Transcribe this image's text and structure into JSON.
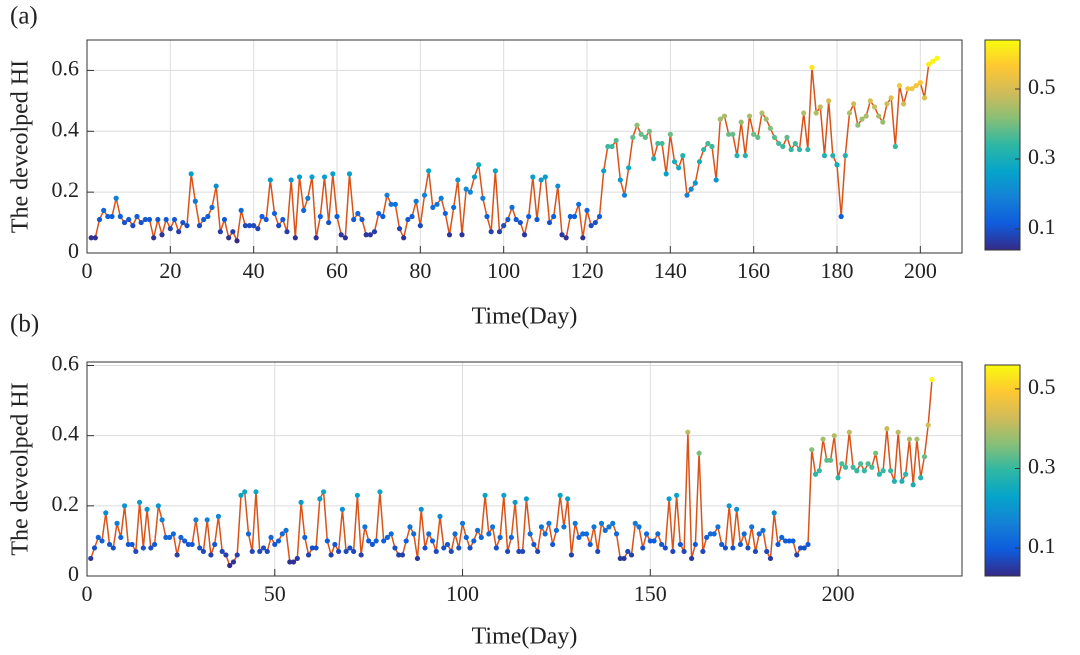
{
  "chart_data": [
    {
      "type": "line",
      "panel_label": "(a)",
      "xlabel": "Time(Day)",
      "ylabel": "The deveolped HI",
      "xlim": [
        0,
        210
      ],
      "xticks": [
        0,
        20,
        40,
        60,
        80,
        100,
        120,
        140,
        160,
        180,
        200
      ],
      "ylim": [
        0,
        0.7
      ],
      "yticks": [
        0,
        0.2,
        0.4,
        0.6
      ],
      "grid": true,
      "line_color": "#d95319",
      "colormap": [
        "#352a87",
        "#0f5cdd",
        "#1481d6",
        "#06a4ca",
        "#2eb7a4",
        "#87bf77",
        "#d1bb59",
        "#fec832",
        "#f9fb0e"
      ],
      "clim": [
        0.04,
        0.64
      ],
      "colorbar_ticks": [
        0.1,
        0.3,
        0.5
      ],
      "x": [
        1,
        2,
        3,
        4,
        5,
        6,
        7,
        8,
        9,
        10,
        11,
        12,
        13,
        14,
        15,
        16,
        17,
        18,
        19,
        20,
        21,
        22,
        23,
        24,
        25,
        26,
        27,
        28,
        29,
        30,
        31,
        32,
        33,
        34,
        35,
        36,
        37,
        38,
        39,
        40,
        41,
        42,
        43,
        44,
        45,
        46,
        47,
        48,
        49,
        50,
        51,
        52,
        53,
        54,
        55,
        56,
        57,
        58,
        59,
        60,
        61,
        62,
        63,
        64,
        65,
        66,
        67,
        68,
        69,
        70,
        71,
        72,
        73,
        74,
        75,
        76,
        77,
        78,
        79,
        80,
        81,
        82,
        83,
        84,
        85,
        86,
        87,
        88,
        89,
        90,
        91,
        92,
        93,
        94,
        95,
        96,
        97,
        98,
        99,
        100,
        101,
        102,
        103,
        104,
        105,
        106,
        107,
        108,
        109,
        110,
        111,
        112,
        113,
        114,
        115,
        116,
        117,
        118,
        119,
        120,
        121,
        122,
        123,
        124,
        125,
        126,
        127,
        128,
        129,
        130,
        131,
        132,
        133,
        134,
        135,
        136,
        137,
        138,
        139,
        140,
        141,
        142,
        143,
        144,
        145,
        146,
        147,
        148,
        149,
        150,
        151,
        152,
        153,
        154,
        155,
        156,
        157,
        158,
        159,
        160,
        161,
        162,
        163,
        164,
        165,
        166,
        167,
        168,
        169,
        170,
        171,
        172,
        173,
        174,
        175,
        176,
        177,
        178,
        179,
        180,
        181,
        182,
        183,
        184,
        185,
        186,
        187,
        188,
        189,
        190,
        191,
        192,
        193,
        194,
        195,
        196,
        197,
        198,
        199,
        200,
        201,
        202,
        203,
        204
      ],
      "values": [
        0.05,
        0.05,
        0.11,
        0.14,
        0.12,
        0.12,
        0.18,
        0.12,
        0.1,
        0.11,
        0.09,
        0.12,
        0.1,
        0.11,
        0.11,
        0.05,
        0.11,
        0.06,
        0.11,
        0.08,
        0.11,
        0.07,
        0.1,
        0.09,
        0.26,
        0.17,
        0.09,
        0.11,
        0.12,
        0.15,
        0.22,
        0.07,
        0.11,
        0.05,
        0.07,
        0.04,
        0.14,
        0.09,
        0.09,
        0.09,
        0.08,
        0.12,
        0.11,
        0.24,
        0.13,
        0.09,
        0.11,
        0.07,
        0.24,
        0.05,
        0.25,
        0.14,
        0.18,
        0.25,
        0.05,
        0.12,
        0.25,
        0.1,
        0.26,
        0.12,
        0.06,
        0.05,
        0.26,
        0.11,
        0.13,
        0.11,
        0.06,
        0.06,
        0.07,
        0.13,
        0.12,
        0.19,
        0.16,
        0.16,
        0.08,
        0.05,
        0.11,
        0.12,
        0.17,
        0.09,
        0.19,
        0.27,
        0.15,
        0.16,
        0.18,
        0.13,
        0.06,
        0.15,
        0.24,
        0.06,
        0.21,
        0.2,
        0.25,
        0.29,
        0.18,
        0.12,
        0.07,
        0.27,
        0.07,
        0.09,
        0.11,
        0.15,
        0.11,
        0.1,
        0.06,
        0.12,
        0.25,
        0.11,
        0.24,
        0.25,
        0.1,
        0.12,
        0.22,
        0.06,
        0.05,
        0.12,
        0.12,
        0.16,
        0.05,
        0.14,
        0.09,
        0.1,
        0.12,
        0.27,
        0.35,
        0.35,
        0.37,
        0.24,
        0.19,
        0.28,
        0.38,
        0.42,
        0.39,
        0.38,
        0.4,
        0.31,
        0.36,
        0.36,
        0.26,
        0.39,
        0.3,
        0.28,
        0.32,
        0.19,
        0.21,
        0.23,
        0.3,
        0.34,
        0.36,
        0.35,
        0.24,
        0.44,
        0.45,
        0.39,
        0.39,
        0.32,
        0.43,
        0.32,
        0.45,
        0.39,
        0.38,
        0.46,
        0.44,
        0.41,
        0.38,
        0.36,
        0.35,
        0.38,
        0.34,
        0.36,
        0.34,
        0.46,
        0.34,
        0.61,
        0.46,
        0.48,
        0.32,
        0.5,
        0.32,
        0.29,
        0.12,
        0.32,
        0.46,
        0.49,
        0.42,
        0.44,
        0.45,
        0.5,
        0.48,
        0.45,
        0.43,
        0.49,
        0.51,
        0.35,
        0.55,
        0.49,
        0.54,
        0.54,
        0.55,
        0.56,
        0.51,
        0.62,
        0.63,
        0.64
      ]
    },
    {
      "type": "line",
      "panel_label": "(b)",
      "xlabel": "Time(Day)",
      "ylabel": "The deveolped HI",
      "xlim": [
        0,
        233
      ],
      "xticks": [
        0,
        50,
        100,
        150,
        200
      ],
      "ylim": [
        0,
        0.61
      ],
      "yticks": [
        0,
        0.2,
        0.4,
        0.6
      ],
      "grid": true,
      "line_color": "#d95319",
      "colormap": [
        "#352a87",
        "#0f5cdd",
        "#1481d6",
        "#06a4ca",
        "#2eb7a4",
        "#87bf77",
        "#d1bb59",
        "#fec832",
        "#f9fb0e"
      ],
      "clim": [
        0.03,
        0.56
      ],
      "colorbar_ticks": [
        0.1,
        0.3,
        0.5
      ],
      "x": [
        1,
        2,
        3,
        4,
        5,
        6,
        7,
        8,
        9,
        10,
        11,
        12,
        13,
        14,
        15,
        16,
        17,
        18,
        19,
        20,
        21,
        22,
        23,
        24,
        25,
        26,
        27,
        28,
        29,
        30,
        31,
        32,
        33,
        34,
        35,
        36,
        37,
        38,
        39,
        40,
        41,
        42,
        43,
        44,
        45,
        46,
        47,
        48,
        49,
        50,
        51,
        52,
        53,
        54,
        55,
        56,
        57,
        58,
        59,
        60,
        61,
        62,
        63,
        64,
        65,
        66,
        67,
        68,
        69,
        70,
        71,
        72,
        73,
        74,
        75,
        76,
        77,
        78,
        79,
        80,
        81,
        82,
        83,
        84,
        85,
        86,
        87,
        88,
        89,
        90,
        91,
        92,
        93,
        94,
        95,
        96,
        97,
        98,
        99,
        100,
        101,
        102,
        103,
        104,
        105,
        106,
        107,
        108,
        109,
        110,
        111,
        112,
        113,
        114,
        115,
        116,
        117,
        118,
        119,
        120,
        121,
        122,
        123,
        124,
        125,
        126,
        127,
        128,
        129,
        130,
        131,
        132,
        133,
        134,
        135,
        136,
        137,
        138,
        139,
        140,
        141,
        142,
        143,
        144,
        145,
        146,
        147,
        148,
        149,
        150,
        151,
        152,
        153,
        154,
        155,
        156,
        157,
        158,
        159,
        160,
        161,
        162,
        163,
        164,
        165,
        166,
        167,
        168,
        169,
        170,
        171,
        172,
        173,
        174,
        175,
        176,
        177,
        178,
        179,
        180,
        181,
        182,
        183,
        184,
        185,
        186,
        187,
        188,
        189,
        190,
        191,
        192,
        193,
        194,
        195,
        196,
        197,
        198,
        199,
        200,
        201,
        202,
        203,
        204,
        205,
        206,
        207,
        208,
        209,
        210,
        211,
        212,
        213,
        214,
        215,
        216,
        217,
        218,
        219,
        220,
        221,
        222,
        223,
        224,
        225
      ],
      "values": [
        0.05,
        0.08,
        0.11,
        0.1,
        0.18,
        0.09,
        0.08,
        0.15,
        0.11,
        0.2,
        0.09,
        0.09,
        0.07,
        0.21,
        0.08,
        0.19,
        0.08,
        0.09,
        0.2,
        0.16,
        0.11,
        0.11,
        0.12,
        0.06,
        0.11,
        0.1,
        0.09,
        0.09,
        0.16,
        0.08,
        0.07,
        0.16,
        0.06,
        0.09,
        0.17,
        0.07,
        0.06,
        0.03,
        0.04,
        0.06,
        0.23,
        0.24,
        0.12,
        0.07,
        0.24,
        0.07,
        0.08,
        0.07,
        0.11,
        0.09,
        0.1,
        0.12,
        0.13,
        0.04,
        0.04,
        0.05,
        0.21,
        0.11,
        0.06,
        0.08,
        0.08,
        0.22,
        0.24,
        0.1,
        0.06,
        0.09,
        0.07,
        0.19,
        0.07,
        0.08,
        0.07,
        0.23,
        0.06,
        0.14,
        0.1,
        0.09,
        0.1,
        0.24,
        0.1,
        0.11,
        0.12,
        0.08,
        0.06,
        0.06,
        0.1,
        0.14,
        0.12,
        0.05,
        0.19,
        0.08,
        0.12,
        0.1,
        0.07,
        0.17,
        0.08,
        0.09,
        0.07,
        0.12,
        0.08,
        0.15,
        0.11,
        0.08,
        0.1,
        0.13,
        0.11,
        0.23,
        0.12,
        0.14,
        0.08,
        0.11,
        0.23,
        0.07,
        0.11,
        0.21,
        0.07,
        0.07,
        0.22,
        0.12,
        0.09,
        0.07,
        0.14,
        0.12,
        0.15,
        0.09,
        0.13,
        0.23,
        0.14,
        0.22,
        0.06,
        0.15,
        0.11,
        0.12,
        0.12,
        0.09,
        0.14,
        0.07,
        0.15,
        0.13,
        0.14,
        0.15,
        0.12,
        0.05,
        0.05,
        0.07,
        0.06,
        0.15,
        0.14,
        0.08,
        0.12,
        0.1,
        0.1,
        0.12,
        0.09,
        0.08,
        0.22,
        0.07,
        0.23,
        0.09,
        0.07,
        0.41,
        0.05,
        0.09,
        0.35,
        0.07,
        0.11,
        0.12,
        0.12,
        0.14,
        0.09,
        0.08,
        0.2,
        0.08,
        0.19,
        0.09,
        0.12,
        0.08,
        0.14,
        0.07,
        0.12,
        0.13,
        0.07,
        0.05,
        0.18,
        0.09,
        0.11,
        0.1,
        0.1,
        0.1,
        0.06,
        0.08,
        0.08,
        0.09,
        0.36,
        0.29,
        0.3,
        0.39,
        0.33,
        0.33,
        0.4,
        0.28,
        0.32,
        0.31,
        0.41,
        0.31,
        0.3,
        0.32,
        0.3,
        0.32,
        0.31,
        0.35,
        0.29,
        0.3,
        0.42,
        0.3,
        0.27,
        0.41,
        0.27,
        0.29,
        0.39,
        0.26,
        0.39,
        0.28,
        0.34,
        0.43,
        0.56
      ]
    }
  ]
}
